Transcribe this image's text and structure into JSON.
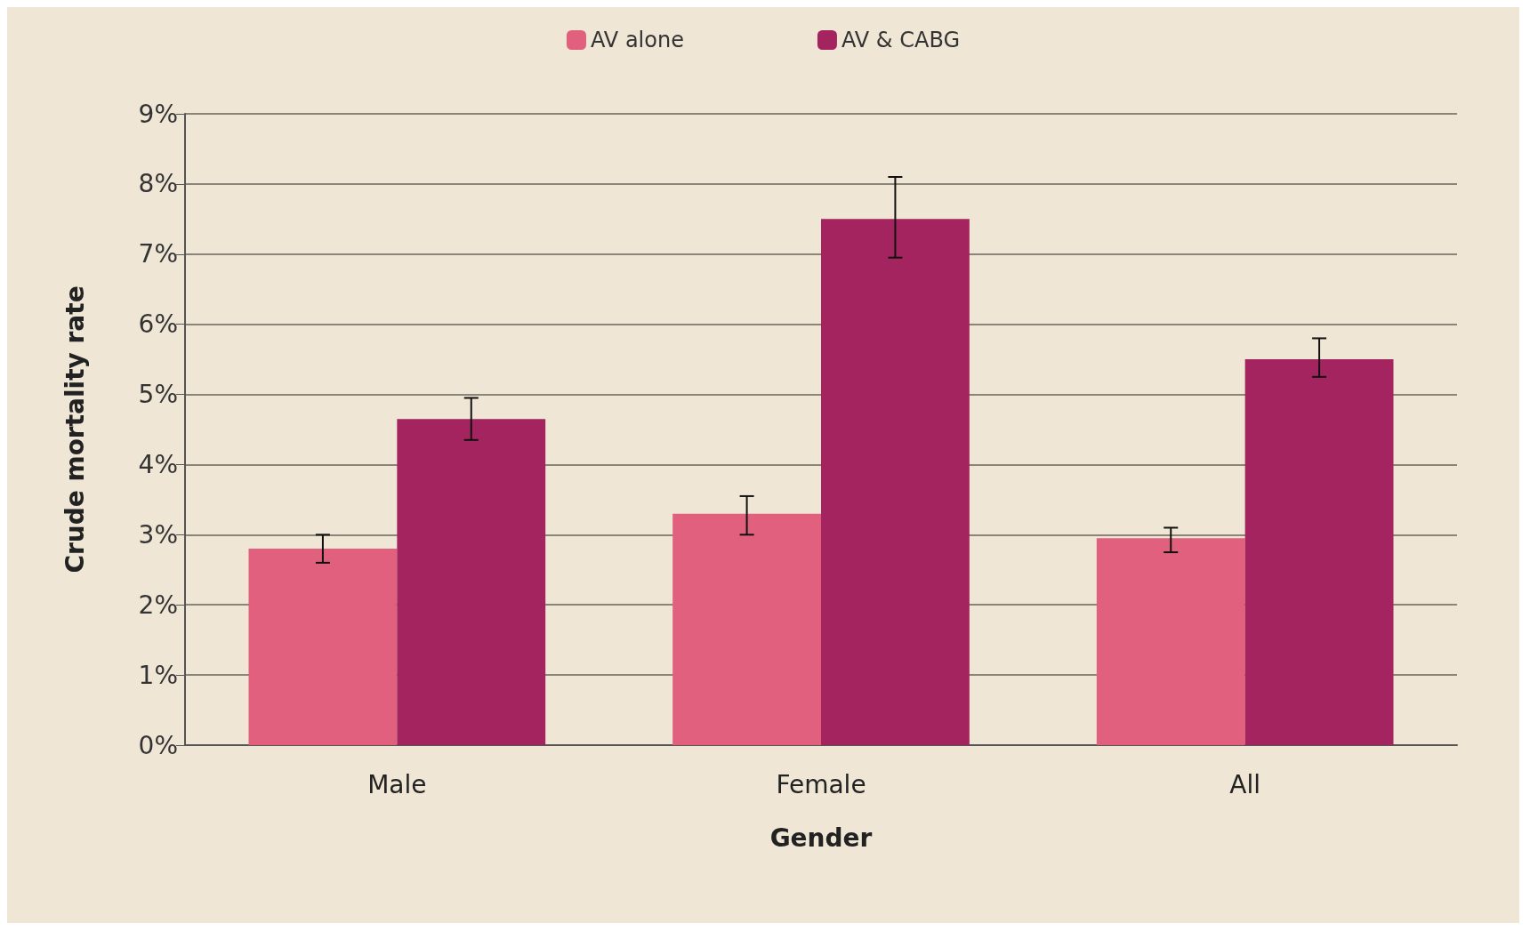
{
  "chart_data": {
    "type": "bar",
    "xlabel": "Gender",
    "ylabel": "Crude mortality rate",
    "categories": [
      "Male",
      "Female",
      "All"
    ],
    "series": [
      {
        "name": "AV alone",
        "color": "#e0607e",
        "values": [
          2.8,
          3.3,
          2.95
        ],
        "errors": [
          [
            2.6,
            3.0
          ],
          [
            3.0,
            3.55
          ],
          [
            2.75,
            3.1
          ]
        ]
      },
      {
        "name": "AV & CABG",
        "color": "#a3245e",
        "values": [
          4.65,
          7.5,
          5.5
        ],
        "errors": [
          [
            4.35,
            4.95
          ],
          [
            6.95,
            8.1
          ],
          [
            5.25,
            5.8
          ]
        ]
      }
    ],
    "ylim": [
      0,
      9
    ],
    "yticks": [
      {
        "value": 0,
        "label": "0%"
      },
      {
        "value": 1,
        "label": "1%"
      },
      {
        "value": 2,
        "label": "2%"
      },
      {
        "value": 3,
        "label": "3%"
      },
      {
        "value": 4,
        "label": "4%"
      },
      {
        "value": 5,
        "label": "5%"
      },
      {
        "value": 6,
        "label": "6%"
      },
      {
        "value": 7,
        "label": "7%"
      },
      {
        "value": 8,
        "label": "8%"
      },
      {
        "value": 9,
        "label": "9%"
      }
    ],
    "grid": "y",
    "legend": "top"
  }
}
